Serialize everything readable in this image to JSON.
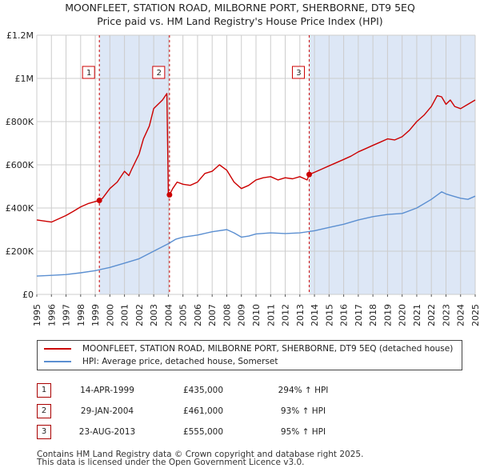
{
  "title_line1": "MOONFLEET, STATION ROAD, MILBORNE PORT, SHERBORNE, DT9 5EQ",
  "title_line2": "Price paid vs. HM Land Registry's House Price Index (HPI)",
  "colors": {
    "property": "#cc0000",
    "hpi": "#5b8fd1",
    "shade": "#dde7f6",
    "grid": "#cccccc"
  },
  "chart_data": {
    "type": "line",
    "xlim": [
      1995,
      2025
    ],
    "ylim": [
      0,
      1200000
    ],
    "ytick_values": [
      0,
      200000,
      400000,
      600000,
      800000,
      1000000,
      1200000
    ],
    "ytick_labels": [
      "£0",
      "£200K",
      "£400K",
      "£600K",
      "£800K",
      "£1M",
      "£1.2M"
    ],
    "xtick_labels": [
      "1995",
      "1996",
      "1997",
      "1998",
      "1999",
      "2000",
      "2001",
      "2002",
      "2003",
      "2004",
      "2005",
      "2006",
      "2007",
      "2008",
      "2009",
      "2010",
      "2011",
      "2012",
      "2013",
      "2014",
      "2015",
      "2016",
      "2017",
      "2018",
      "2019",
      "2020",
      "2021",
      "2022",
      "2023",
      "2024",
      "2025"
    ],
    "shaded_ranges": [
      [
        1999.28,
        2004.08
      ],
      [
        2013.64,
        2025
      ]
    ],
    "series": [
      {
        "name": "MOONFLEET, STATION ROAD, MILBORNE PORT, SHERBORNE, DT9 5EQ (detached house)",
        "color": "#cc0000",
        "x": [
          1995.0,
          1996.0,
          1996.5,
          1997.0,
          1997.5,
          1998.0,
          1998.5,
          1999.0,
          1999.28,
          1999.5,
          2000.0,
          2000.5,
          2001.0,
          2001.3,
          2001.5,
          2002.0,
          2002.3,
          2002.7,
          2003.0,
          2003.3,
          2003.6,
          2003.9,
          2004.0,
          2004.08,
          2004.3,
          2004.6,
          2005.0,
          2005.5,
          2006.0,
          2006.5,
          2007.0,
          2007.5,
          2008.0,
          2008.5,
          2009.0,
          2009.5,
          2010.0,
          2010.5,
          2011.0,
          2011.5,
          2012.0,
          2012.5,
          2013.0,
          2013.5,
          2013.64,
          2014.0,
          2014.5,
          2015.0,
          2015.5,
          2016.0,
          2016.5,
          2017.0,
          2017.5,
          2018.0,
          2018.5,
          2019.0,
          2019.5,
          2020.0,
          2020.5,
          2021.0,
          2021.5,
          2022.0,
          2022.4,
          2022.7,
          2023.0,
          2023.3,
          2023.6,
          2024.0,
          2024.5,
          2025.0
        ],
        "y": [
          345000,
          335000,
          350000,
          365000,
          385000,
          405000,
          420000,
          430000,
          435000,
          445000,
          490000,
          520000,
          570000,
          550000,
          580000,
          650000,
          720000,
          780000,
          860000,
          880000,
          900000,
          930000,
          470000,
          461000,
          490000,
          520000,
          510000,
          505000,
          520000,
          560000,
          570000,
          600000,
          575000,
          520000,
          490000,
          505000,
          530000,
          540000,
          545000,
          530000,
          540000,
          535000,
          545000,
          530000,
          555000,
          565000,
          580000,
          595000,
          610000,
          625000,
          640000,
          660000,
          675000,
          690000,
          705000,
          720000,
          715000,
          730000,
          760000,
          800000,
          830000,
          870000,
          920000,
          915000,
          880000,
          900000,
          870000,
          860000,
          880000,
          900000
        ]
      },
      {
        "name": "HPI: Average price, detached house, Somerset",
        "color": "#5b8fd1",
        "x": [
          1995.0,
          1996.0,
          1997.0,
          1998.0,
          1999.0,
          2000.0,
          2001.0,
          2002.0,
          2003.0,
          2004.0,
          2004.5,
          2005.0,
          2006.0,
          2007.0,
          2008.0,
          2008.5,
          2009.0,
          2009.5,
          2010.0,
          2011.0,
          2012.0,
          2013.0,
          2014.0,
          2015.0,
          2016.0,
          2017.0,
          2018.0,
          2019.0,
          2020.0,
          2021.0,
          2022.0,
          2022.7,
          2023.0,
          2023.5,
          2024.0,
          2024.5,
          2025.0
        ],
        "y": [
          85000,
          88000,
          92000,
          100000,
          110000,
          125000,
          145000,
          165000,
          200000,
          235000,
          255000,
          265000,
          275000,
          290000,
          300000,
          285000,
          265000,
          270000,
          280000,
          285000,
          282000,
          285000,
          295000,
          310000,
          325000,
          345000,
          360000,
          370000,
          375000,
          400000,
          440000,
          475000,
          465000,
          455000,
          445000,
          440000,
          455000
        ]
      }
    ],
    "sales": [
      {
        "label": "1",
        "x": 1999.28,
        "y": 435000
      },
      {
        "label": "2",
        "x": 2004.08,
        "y": 461000
      },
      {
        "label": "3",
        "x": 2013.64,
        "y": 555000
      }
    ]
  },
  "legend": {
    "property": "MOONFLEET, STATION ROAD, MILBORNE PORT, SHERBORNE, DT9 5EQ (detached house)",
    "hpi": "HPI: Average price, detached house, Somerset"
  },
  "sales_table": [
    {
      "num": "1",
      "date": "14-APR-1999",
      "price": "£435,000",
      "hpi": "294% ↑ HPI"
    },
    {
      "num": "2",
      "date": "29-JAN-2004",
      "price": "£461,000",
      "hpi": "93% ↑ HPI"
    },
    {
      "num": "3",
      "date": "23-AUG-2013",
      "price": "£555,000",
      "hpi": "95% ↑ HPI"
    }
  ],
  "footer_line1": "Contains HM Land Registry data © Crown copyright and database right 2025.",
  "footer_line2": "This data is licensed under the Open Government Licence v3.0."
}
